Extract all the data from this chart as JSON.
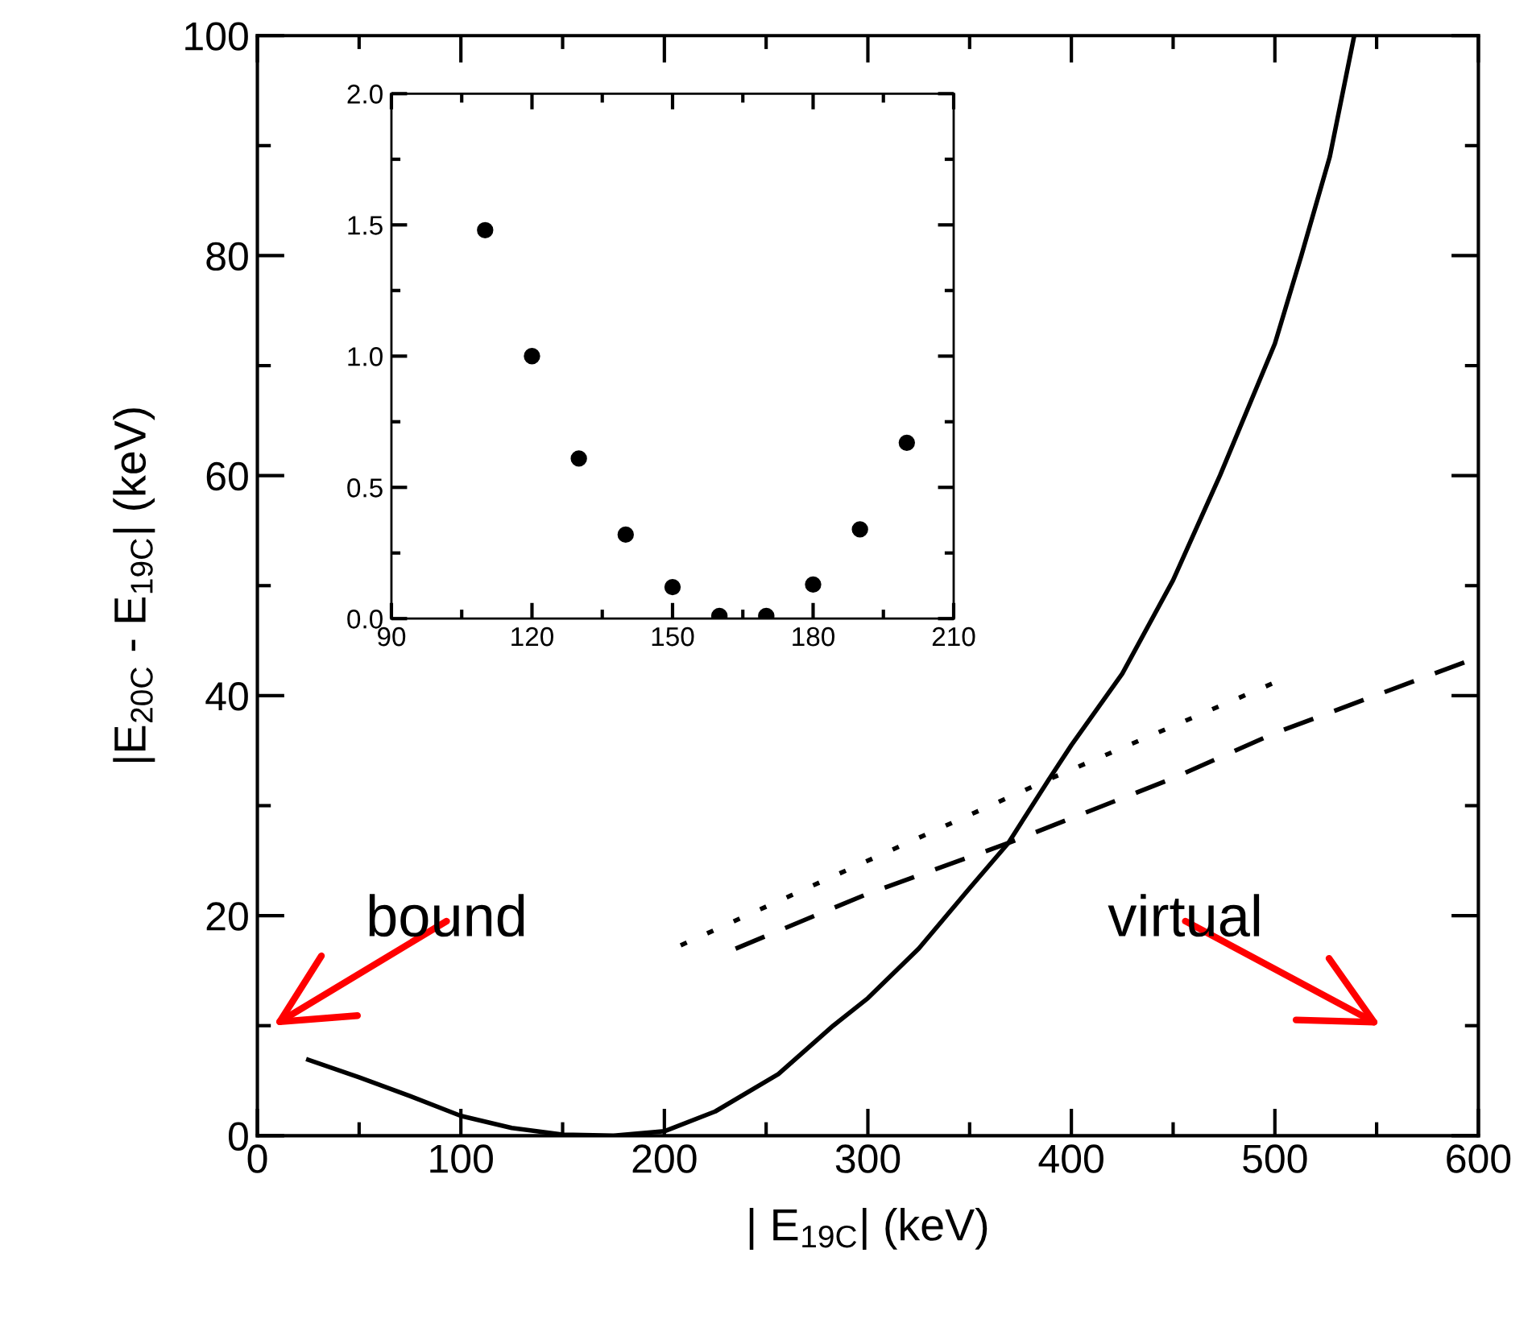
{
  "chart_data": [
    {
      "type": "line",
      "xlabel": "| E$_{19C}$| (keV)",
      "ylabel": "|E$_{20C}$ - E$_{19C}$| (keV)",
      "xlim": [
        0,
        600
      ],
      "xticks": [
        0,
        100,
        200,
        300,
        400,
        500,
        600
      ],
      "ylim": [
        0,
        100
      ],
      "yticks": [
        0,
        20,
        40,
        60,
        80,
        100
      ],
      "grid": false,
      "legend": false,
      "marker": "none",
      "series": [
        {
          "color": "#000000",
          "line_style": "solid",
          "x": [
            25,
            50,
            75,
            100,
            125,
            150,
            175,
            200,
            225,
            256,
            283,
            300,
            325,
            350,
            369,
            389,
            400,
            425,
            450,
            473,
            500,
            513,
            527,
            539
          ],
          "values": [
            6.9,
            5.3,
            3.6,
            1.8,
            0.7,
            0.1,
            0,
            0.4,
            2.2,
            5.6,
            10,
            12.5,
            17,
            22.5,
            26.6,
            32.4,
            35.5,
            42,
            50.5,
            60,
            72,
            80,
            89,
            100
          ]
        },
        {
          "color": "#000000",
          "line_style": "dotted",
          "x": [
            208,
            300,
            389,
            500
          ],
          "values": [
            17.3,
            25,
            32.4,
            41.2
          ]
        },
        {
          "color": "#000000",
          "line_style": "dashed",
          "x": [
            235,
            300,
            369,
            450,
            500,
            600
          ],
          "values": [
            17,
            22,
            26.6,
            32.5,
            36.6,
            43.5
          ]
        }
      ],
      "annotations": [
        "bound",
        "virtual"
      ]
    },
    {
      "type": "scatter",
      "xlim": [
        90,
        210
      ],
      "xticks": [
        90,
        120,
        150,
        180,
        210
      ],
      "ylim": [
        0.0,
        2.0
      ],
      "yticks": [
        {
          "value": 0,
          "label": "0.0"
        },
        0.5,
        {
          "value": 1,
          "label": "1.0"
        },
        1.5,
        {
          "value": 2,
          "label": "2.0"
        }
      ],
      "grid": false,
      "marker": "circle",
      "series": [
        {
          "color": "#000000",
          "x": [
            110,
            120,
            130,
            140,
            150,
            160,
            170,
            180,
            190,
            200
          ],
          "values": [
            1.48,
            1.0,
            0.61,
            0.32,
            0.12,
            0.01,
            0.01,
            0.13,
            0.34,
            0.67
          ]
        }
      ]
    }
  ]
}
